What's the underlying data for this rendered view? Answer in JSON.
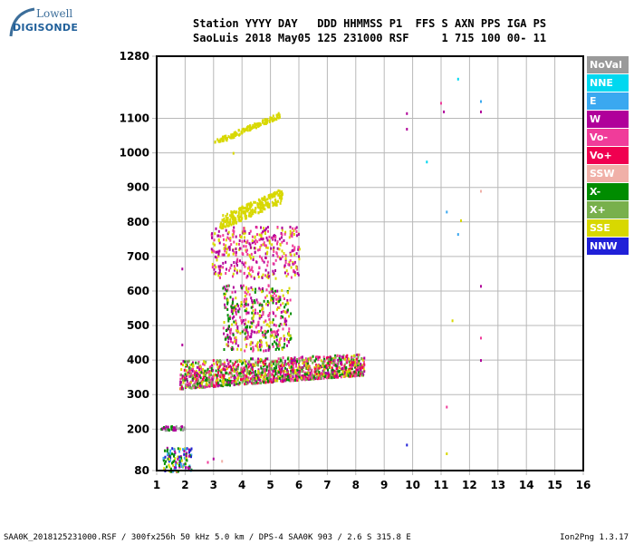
{
  "logo": {
    "line1": "Lowell",
    "line2": "DIGISONDE"
  },
  "header": {
    "line1": "Station YYYY DAY   DDD HHMMSS P1  FFS S AXN PPS IGA PS",
    "line2": "SaoLuis 2018 May05 125 231000 RSF     1 715 100 00- 11"
  },
  "legend": [
    {
      "label": "NoVal",
      "color": "#9a9a9a"
    },
    {
      "label": "NNE",
      "color": "#00d8f0"
    },
    {
      "label": "E",
      "color": "#3aa8f0"
    },
    {
      "label": "W",
      "color": "#b0009a"
    },
    {
      "label": "Vo-",
      "color": "#f03c9a"
    },
    {
      "label": "Vo+",
      "color": "#f00050"
    },
    {
      "label": "SSW",
      "color": "#f0b0a8"
    },
    {
      "label": "X-",
      "color": "#008c00"
    },
    {
      "label": "X+",
      "color": "#78b04c"
    },
    {
      "label": "SSE",
      "color": "#d8d800"
    },
    {
      "label": "NNW",
      "color": "#2020d8"
    }
  ],
  "footer": {
    "left": "SAA0K_2018125231000.RSF / 300fx256h 50 kHz 5.0 km / DPS-4 SAA0K 903 / 2.6 S 315.8 E",
    "right": "Ion2Png 1.3.17"
  },
  "chart_data": {
    "type": "scatter",
    "title": "",
    "xlabel": "",
    "ylabel": "",
    "xlim": [
      1,
      16
    ],
    "ylim": [
      80,
      1280
    ],
    "xticks": [
      1,
      2,
      3,
      4,
      5,
      6,
      7,
      8,
      9,
      10,
      11,
      12,
      13,
      14,
      15,
      16
    ],
    "yticks": [
      80,
      200,
      300,
      400,
      500,
      600,
      700,
      800,
      900,
      1000,
      1100,
      1280
    ],
    "grid": true,
    "clusters": [
      {
        "name": "F-layer base trace",
        "freq_range": [
          1.8,
          8.3
        ],
        "height_range": [
          315,
          440
        ],
        "colors": [
          "#f03c9a",
          "#b0009a",
          "#f00050",
          "#008c00",
          "#d8d800",
          "#78b04c"
        ],
        "count": 1400
      },
      {
        "name": "spread column",
        "freq_range": [
          3.3,
          5.7
        ],
        "height_range": [
          430,
          620
        ],
        "colors": [
          "#d8d800",
          "#b0009a",
          "#008c00",
          "#f03c9a"
        ],
        "count": 450
      },
      {
        "name": "upper spread",
        "freq_range": [
          2.9,
          6.0
        ],
        "height_range": [
          640,
          790
        ],
        "colors": [
          "#b0009a",
          "#f03c9a",
          "#d8d800"
        ],
        "count": 380
      },
      {
        "name": "SSE band 2",
        "freq_range": [
          3.2,
          5.4
        ],
        "height_range": [
          780,
          890
        ],
        "colors": [
          "#d8d800"
        ],
        "count": 260
      },
      {
        "name": "SSE band 3",
        "freq_range": [
          3.0,
          5.3
        ],
        "height_range": [
          1025,
          1110
        ],
        "colors": [
          "#d8d800"
        ],
        "count": 140
      },
      {
        "name": "low E echoes",
        "freq_range": [
          1.2,
          2.2
        ],
        "height_range": [
          80,
          150
        ],
        "colors": [
          "#2020d8",
          "#3aa8f0",
          "#b0009a",
          "#d8d800",
          "#008c00"
        ],
        "count": 120
      },
      {
        "name": "Es trace",
        "freq_range": [
          1.1,
          2.0
        ],
        "height_range": [
          200,
          212
        ],
        "colors": [
          "#9a9a9a",
          "#b0009a",
          "#008c00"
        ],
        "count": 40
      }
    ],
    "isolated_points": [
      {
        "x": 9.8,
        "y": 1115,
        "c": "#b0009a"
      },
      {
        "x": 9.8,
        "y": 1070,
        "c": "#b0009a"
      },
      {
        "x": 11.0,
        "y": 1145,
        "c": "#f03c9a"
      },
      {
        "x": 11.1,
        "y": 1120,
        "c": "#b0009a"
      },
      {
        "x": 11.6,
        "y": 1215,
        "c": "#00d8f0"
      },
      {
        "x": 12.4,
        "y": 1150,
        "c": "#3aa8f0"
      },
      {
        "x": 12.4,
        "y": 1120,
        "c": "#b0009a"
      },
      {
        "x": 10.5,
        "y": 975,
        "c": "#00d8f0"
      },
      {
        "x": 11.2,
        "y": 830,
        "c": "#3aa8f0"
      },
      {
        "x": 11.6,
        "y": 765,
        "c": "#3aa8f0"
      },
      {
        "x": 11.7,
        "y": 805,
        "c": "#d8d800"
      },
      {
        "x": 12.4,
        "y": 890,
        "c": "#f0b0a8"
      },
      {
        "x": 12.4,
        "y": 615,
        "c": "#b0009a"
      },
      {
        "x": 11.4,
        "y": 515,
        "c": "#d8d800"
      },
      {
        "x": 12.4,
        "y": 465,
        "c": "#f03c9a"
      },
      {
        "x": 12.4,
        "y": 400,
        "c": "#b0009a"
      },
      {
        "x": 11.2,
        "y": 265,
        "c": "#f03c9a"
      },
      {
        "x": 9.8,
        "y": 155,
        "c": "#2020d8"
      },
      {
        "x": 11.2,
        "y": 130,
        "c": "#d8d800"
      },
      {
        "x": 1.9,
        "y": 665,
        "c": "#b0009a"
      },
      {
        "x": 1.9,
        "y": 445,
        "c": "#b0009a"
      },
      {
        "x": 3.7,
        "y": 1000,
        "c": "#d8d800"
      },
      {
        "x": 2.8,
        "y": 105,
        "c": "#f03c9a"
      },
      {
        "x": 3.0,
        "y": 115,
        "c": "#b0009a"
      },
      {
        "x": 3.3,
        "y": 108,
        "c": "#f0b0a8"
      }
    ]
  }
}
